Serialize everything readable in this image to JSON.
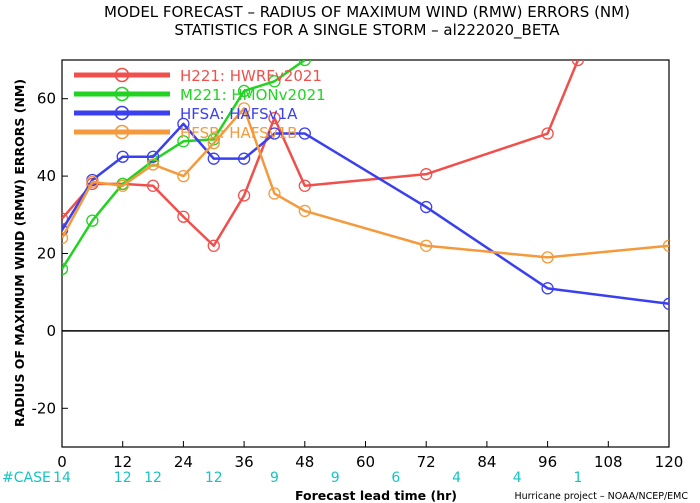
{
  "titles": {
    "line1": "MODEL FORECAST – RADIUS OF MAXIMUM WIND (RMW) ERRORS (NM)",
    "line2": "STATISTICS FOR A SINGLE STORM – al222020_BETA"
  },
  "credit": "Hurricane project – NOAA/NCEP/EMC",
  "case_label": "#CASE",
  "case_counts": [
    "14",
    "12",
    "12",
    "12",
    "9",
    "9",
    "6",
    "4",
    "4",
    "1"
  ],
  "case_x": [
    0,
    12,
    18,
    30,
    42,
    54,
    66,
    78,
    90,
    102
  ],
  "chart_data": {
    "type": "line",
    "xlabel": "Forecast lead time (hr)",
    "ylabel": "RADIUS OF MAXIMUM WIND (RMW) ERRORS (NM)",
    "xlim": [
      0,
      120
    ],
    "ylim": [
      -30,
      70
    ],
    "xticks": [
      0,
      12,
      24,
      36,
      48,
      60,
      72,
      84,
      96,
      108,
      120
    ],
    "yticks": [
      -20,
      0,
      20,
      40,
      60
    ],
    "legend_position": "top-left",
    "series": [
      {
        "name": "H221: HWRFv2021",
        "color": "#f0504c",
        "x": [
          0,
          6,
          12,
          18,
          24,
          30,
          36,
          42,
          48,
          72,
          96,
          102
        ],
        "y": [
          29,
          38,
          38,
          37.5,
          29.5,
          22,
          35,
          55,
          37.5,
          40.5,
          51,
          70
        ]
      },
      {
        "name": "M221: HMONv2021",
        "color": "#22d322",
        "x": [
          0,
          6,
          12,
          18,
          24,
          30,
          36,
          42,
          48
        ],
        "y": [
          16,
          28.5,
          38,
          44,
          49,
          49.5,
          62,
          64.5,
          70
        ]
      },
      {
        "name": "HFSA: HAFSv1A",
        "color": "#3a3ff0",
        "x": [
          0,
          6,
          12,
          18,
          24,
          30,
          36,
          42,
          48,
          72,
          96,
          120
        ],
        "y": [
          26,
          39,
          45,
          45,
          53.5,
          44.5,
          44.5,
          51,
          51,
          32,
          11,
          7
        ]
      },
      {
        "name": "HFSB: HAFSv1B",
        "color": "#f59a3c",
        "x": [
          0,
          6,
          12,
          18,
          24,
          30,
          36,
          42,
          48,
          72,
          96,
          120
        ],
        "y": [
          24,
          38.5,
          37.5,
          43,
          40,
          48.5,
          57.5,
          35.5,
          31,
          22,
          19,
          22
        ]
      }
    ]
  }
}
